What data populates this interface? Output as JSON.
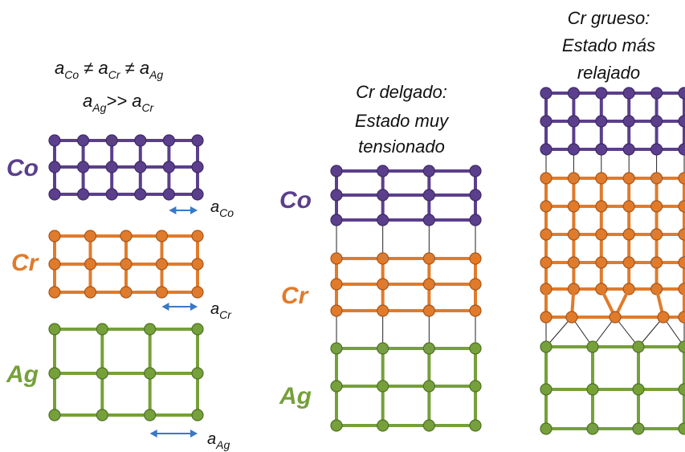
{
  "colors": {
    "co": "#5b3f8c",
    "cr": "#e07b2b",
    "ag": "#76a03a",
    "arrow": "#3a78c4",
    "link": "#222222"
  },
  "formula": {
    "line1": {
      "a": "a",
      "co": "Co",
      "neq1": " ≠ ",
      "cr": "Cr",
      "neq2": " ≠ ",
      "ag": "Ag"
    },
    "line2": {
      "a": "a",
      "ag": "Ag",
      "gg": ">> ",
      "cr": "Cr"
    }
  },
  "left": {
    "labels": {
      "co": "Co",
      "cr": "Cr",
      "ag": "Ag"
    },
    "dims": {
      "co": {
        "a": "a",
        "sub": "Co"
      },
      "cr": {
        "a": "a",
        "sub": "Cr"
      },
      "ag": {
        "a": "a",
        "sub": "Ag"
      }
    }
  },
  "middle": {
    "caption": [
      "Cr delgado:",
      "Estado muy",
      "tensionado"
    ],
    "labels": {
      "co": "Co",
      "cr": "Cr",
      "ag": "Ag"
    }
  },
  "right": {
    "caption": [
      "Cr grueso:",
      "Estado más",
      "relajado"
    ]
  }
}
